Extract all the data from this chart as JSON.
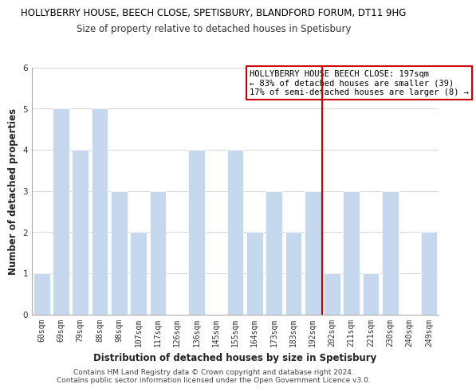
{
  "title_line1": "HOLLYBERRY HOUSE, BEECH CLOSE, SPETISBURY, BLANDFORD FORUM, DT11 9HG",
  "title_line2": "Size of property relative to detached houses in Spetisbury",
  "xlabel": "Distribution of detached houses by size in Spetisbury",
  "ylabel": "Number of detached properties",
  "bin_labels": [
    "60sqm",
    "69sqm",
    "79sqm",
    "88sqm",
    "98sqm",
    "107sqm",
    "117sqm",
    "126sqm",
    "136sqm",
    "145sqm",
    "155sqm",
    "164sqm",
    "173sqm",
    "183sqm",
    "192sqm",
    "202sqm",
    "211sqm",
    "221sqm",
    "230sqm",
    "240sqm",
    "249sqm"
  ],
  "bar_values": [
    1,
    5,
    4,
    5,
    3,
    2,
    3,
    0,
    4,
    0,
    4,
    2,
    3,
    2,
    3,
    1,
    3,
    1,
    3,
    0,
    2
  ],
  "bar_color": "#c5d8ed",
  "bar_edge_color": "#ffffff",
  "grid_color": "#d0d0d0",
  "reference_line_x": 14.5,
  "reference_line_color": "#cc0000",
  "ylim": [
    0,
    6
  ],
  "yticks": [
    0,
    1,
    2,
    3,
    4,
    5,
    6
  ],
  "annotation_title": "HOLLYBERRY HOUSE BEECH CLOSE: 197sqm",
  "annotation_line1": "← 83% of detached houses are smaller (39)",
  "annotation_line2": "17% of semi-detached houses are larger (8) →",
  "annotation_box_edge": "#cc0000",
  "footer_line1": "Contains HM Land Registry data © Crown copyright and database right 2024.",
  "footer_line2": "Contains public sector information licensed under the Open Government Licence v3.0.",
  "bg_color": "#ffffff",
  "title_fontsize": 8.5,
  "subtitle_fontsize": 8.5,
  "axis_label_fontsize": 8.5,
  "tick_fontsize": 7.0,
  "footer_fontsize": 6.5,
  "annotation_fontsize": 7.5
}
